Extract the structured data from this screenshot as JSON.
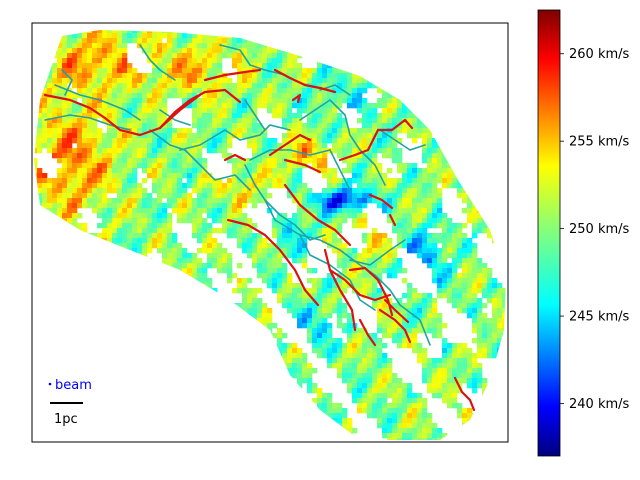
{
  "chart_data": {
    "type": "heatmap",
    "title": "",
    "xlabel": "",
    "ylabel": "",
    "colormap": "jet",
    "colorbar": {
      "vmin": 237,
      "vmax": 262.5,
      "ticks": [
        240,
        245,
        250,
        255,
        260
      ],
      "tick_labels": [
        "240 km/s",
        "245 km/s",
        "250 km/s",
        "255 km/s",
        "260 km/s"
      ]
    },
    "annotations": {
      "beam_label": "beam",
      "beam_color": "#0000ff",
      "scale_bar_label": "1pc"
    },
    "overlays": [
      {
        "name": "filaments",
        "color": "#dd1111"
      },
      {
        "name": "skeleton",
        "color": "#1fa3a3"
      }
    ],
    "axes_ticks_visible": false
  }
}
